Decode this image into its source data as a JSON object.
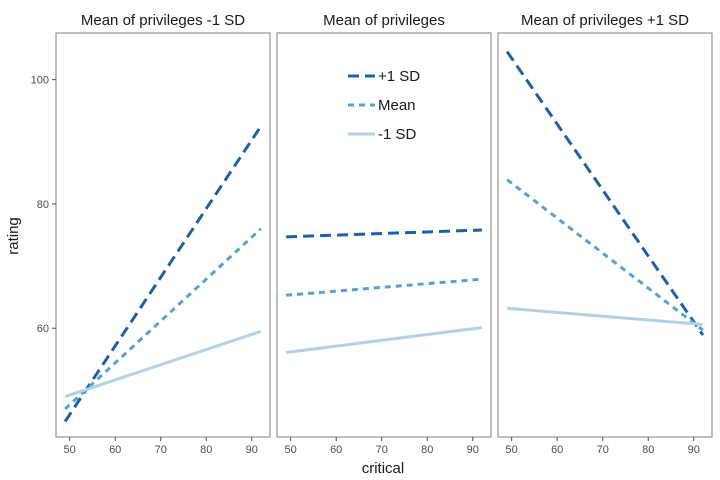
{
  "chart_data": {
    "type": "line",
    "xlabel": "critical",
    "ylabel": "rating",
    "xlim": [
      47,
      94
    ],
    "ylim": [
      42.5,
      107.5
    ],
    "xticks": [
      50,
      60,
      70,
      80,
      90
    ],
    "yticks": [
      60,
      80,
      100
    ],
    "grid": false,
    "legend_position": "inside-top-center-panel",
    "legend": [
      "+1 SD",
      "Mean",
      "-1 SD"
    ],
    "colors": {
      "+1 SD": "#1f5fa8",
      "Mean": "#5aa0d0",
      "-1 SD": "#b3d1e3"
    },
    "panels": [
      {
        "title": "Mean of privileges -1 SD",
        "series": [
          {
            "name": "+1 SD",
            "x": [
              49,
              92
            ],
            "y": [
              45,
              92.5
            ]
          },
          {
            "name": "Mean",
            "x": [
              49,
              92
            ],
            "y": [
              47,
              76
            ]
          },
          {
            "name": "-1 SD",
            "x": [
              49,
              92
            ],
            "y": [
              49,
              59.5
            ]
          }
        ]
      },
      {
        "title": "Mean of privileges",
        "series": [
          {
            "name": "+1 SD",
            "x": [
              49,
              92
            ],
            "y": [
              74.7,
              75.8
            ]
          },
          {
            "name": "Mean",
            "x": [
              49,
              92
            ],
            "y": [
              65.3,
              67.9
            ]
          },
          {
            "name": "-1 SD",
            "x": [
              49,
              92
            ],
            "y": [
              56.1,
              60.1
            ]
          }
        ]
      },
      {
        "title": "Mean of privileges +1 SD",
        "series": [
          {
            "name": "+1 SD",
            "x": [
              49,
              92
            ],
            "y": [
              104.5,
              58.9
            ]
          },
          {
            "name": "Mean",
            "x": [
              49,
              92
            ],
            "y": [
              83.9,
              59.7
            ]
          },
          {
            "name": "-1 SD",
            "x": [
              49,
              92
            ],
            "y": [
              63.2,
              60.6
            ]
          }
        ]
      }
    ]
  }
}
